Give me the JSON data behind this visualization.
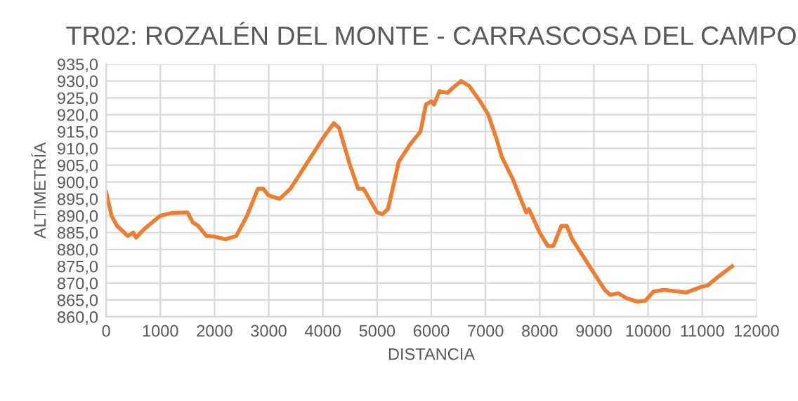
{
  "chart_data": {
    "type": "line",
    "title": "TR02: ROZALÉN DEL MONTE - CARRASCOSA DEL CAMPO",
    "xlabel": "DISTANCIA",
    "ylabel": "ALTIMETRÍA",
    "x": [
      0,
      100,
      200,
      400,
      500,
      550,
      700,
      1000,
      1200,
      1500,
      1600,
      1700,
      1850,
      2000,
      2200,
      2400,
      2600,
      2800,
      2900,
      3000,
      3200,
      3400,
      3600,
      3800,
      4000,
      4200,
      4300,
      4500,
      4650,
      4750,
      5000,
      5100,
      5200,
      5400,
      5600,
      5800,
      5900,
      6000,
      6050,
      6150,
      6300,
      6400,
      6550,
      6700,
      6900,
      7050,
      7200,
      7300,
      7500,
      7650,
      7750,
      7800,
      8000,
      8150,
      8250,
      8400,
      8500,
      8600,
      8800,
      9000,
      9200,
      9300,
      9450,
      9600,
      9800,
      9950,
      10100,
      10300,
      10700,
      11000,
      11100,
      11300,
      11550
    ],
    "series": [
      {
        "color": "#ed7d31",
        "values": [
          897,
          890,
          887,
          884,
          885,
          883.5,
          886,
          890,
          890.8,
          891,
          888,
          887,
          884,
          883.8,
          883,
          884,
          890,
          898,
          898,
          896,
          895,
          898,
          903,
          908,
          913,
          917.5,
          916,
          905,
          898,
          898,
          891,
          890.5,
          892,
          906,
          911,
          915,
          923,
          924,
          923,
          927,
          926.5,
          928,
          930,
          928.5,
          924,
          920,
          913,
          907.5,
          901,
          895,
          891,
          892,
          885,
          881,
          881,
          887,
          887,
          883,
          878,
          873,
          868,
          866.5,
          867,
          865.5,
          864.5,
          864.8,
          867.5,
          868,
          867.2,
          869,
          869.3,
          872,
          875
        ]
      }
    ],
    "xlim": [
      0,
      12000
    ],
    "xticks": [
      0,
      1000,
      2000,
      3000,
      4000,
      5000,
      6000,
      7000,
      8000,
      9000,
      10000,
      11000,
      12000
    ],
    "ylim": [
      860,
      935
    ],
    "yticks": [
      {
        "value": 860,
        "label": "860,0"
      },
      {
        "value": 865,
        "label": "865,0"
      },
      {
        "value": 870,
        "label": "870,0"
      },
      {
        "value": 875,
        "label": "875,0"
      },
      {
        "value": 880,
        "label": "880,0"
      },
      {
        "value": 885,
        "label": "885,0"
      },
      {
        "value": 890,
        "label": "890,0"
      },
      {
        "value": 895,
        "label": "895,0"
      },
      {
        "value": 900,
        "label": "900,0"
      },
      {
        "value": 905,
        "label": "905,0"
      },
      {
        "value": 910,
        "label": "910,0"
      },
      {
        "value": 915,
        "label": "915,0"
      },
      {
        "value": 920,
        "label": "920,0"
      },
      {
        "value": 925,
        "label": "925,0"
      },
      {
        "value": 930,
        "label": "930,0"
      },
      {
        "value": 935,
        "label": "935,0"
      }
    ],
    "grid": true,
    "line_style": "solid",
    "marker": "none"
  }
}
